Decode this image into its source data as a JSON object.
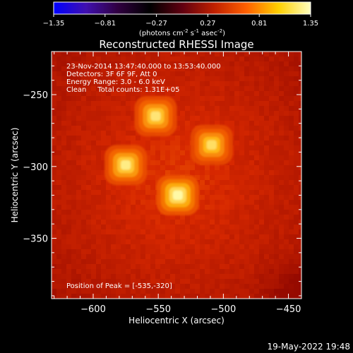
{
  "colorbar": {
    "ticks": [
      "-1.35",
      "-0.81",
      "-0.27",
      "0.27",
      "0.81",
      "1.35"
    ],
    "unit_prefix": "(photons cm",
    "unit_exp1": "-2",
    "unit_mid": " s",
    "unit_exp2": "-1",
    "unit_mid2": " asec",
    "unit_exp3": "-2",
    "unit_suffix": ")",
    "stops": [
      "#0000ff",
      "#4010b0",
      "#300040",
      "#000000",
      "#600010",
      "#c02000",
      "#ff6000",
      "#ffd000",
      "#ffffc0"
    ]
  },
  "chart_data": {
    "type": "heatmap",
    "title": "Reconstructed RHESSI Image",
    "xlabel": "Heliocentric X (arcsec)",
    "ylabel": "Heliocentric Y (arcsec)",
    "xlim": [
      -632,
      -440
    ],
    "ylim": [
      -392,
      -220
    ],
    "xticks": [
      -600,
      -550,
      -500,
      -450
    ],
    "xtick_labels": [
      "−600",
      "−550",
      "−500",
      "−450"
    ],
    "yticks": [
      -250,
      -300,
      -350
    ],
    "ytick_labels": [
      "−250",
      "−300",
      "−350"
    ],
    "sources": [
      {
        "x": -552,
        "y": -265,
        "peak": 0.92
      },
      {
        "x": -509,
        "y": -285,
        "peak": 0.9
      },
      {
        "x": -575,
        "y": -299,
        "peak": 0.94
      },
      {
        "x": -535,
        "y": -320,
        "peak": 1.0
      }
    ],
    "annotations": [
      "23-Nov-2014 13:47:40.000 to 13:53:40.000",
      "Detectors: 3F 6F 9F, Att 0",
      "Energy Range: 3.0 - 6.0 keV",
      "Clean     Total counts: 1.31E+05"
    ],
    "peak_label": "Position of Peak = [-535,-320]"
  },
  "footer": {
    "timestamp": "19-May-2022 19:48"
  }
}
